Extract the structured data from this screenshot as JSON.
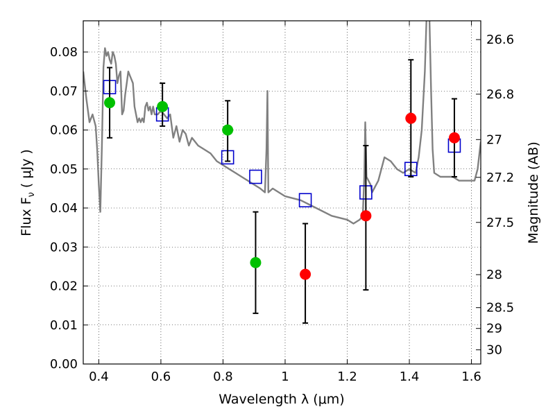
{
  "chart_data": {
    "type": "scatter",
    "xlabel": "Wavelength  λ (μm)",
    "ylabel": "Flux  F",
    "ylabel_subscript": "ν",
    "ylabel_unit": "( μJy )",
    "y2label": "Magnitude (AB)",
    "xlim": [
      0.35,
      1.63
    ],
    "ylim": [
      0.0,
      0.088
    ],
    "grid": true,
    "xticks": [
      {
        "value": 0.4,
        "label": "0.4"
      },
      {
        "value": 0.6,
        "label": "0.6"
      },
      {
        "value": 0.8,
        "label": "0.8"
      },
      {
        "value": 1.0,
        "label": "1"
      },
      {
        "value": 1.2,
        "label": "1.2"
      },
      {
        "value": 1.4,
        "label": "1.4"
      },
      {
        "value": 1.6,
        "label": "1.6"
      }
    ],
    "yticks": [
      {
        "value": 0.0,
        "label": "0.00"
      },
      {
        "value": 0.01,
        "label": "0.01"
      },
      {
        "value": 0.02,
        "label": "0.02"
      },
      {
        "value": 0.03,
        "label": "0.03"
      },
      {
        "value": 0.04,
        "label": "0.04"
      },
      {
        "value": 0.05,
        "label": "0.05"
      },
      {
        "value": 0.06,
        "label": "0.06"
      },
      {
        "value": 0.07,
        "label": "0.07"
      },
      {
        "value": 0.08,
        "label": "0.08"
      }
    ],
    "y2ticks": [
      {
        "value": 26.6,
        "label": "26.6"
      },
      {
        "value": 26.8,
        "label": "26.8"
      },
      {
        "value": 27.0,
        "label": "27"
      },
      {
        "value": 27.2,
        "label": "27.2"
      },
      {
        "value": 27.5,
        "label": "27.5"
      },
      {
        "value": 28.0,
        "label": "28"
      },
      {
        "value": 28.5,
        "label": "28.5"
      },
      {
        "value": 29.0,
        "label": "29"
      },
      {
        "value": 30.0,
        "label": "30"
      }
    ],
    "series": [
      {
        "kind": "line",
        "color": "#808080",
        "points": [
          [
            0.35,
            0.075
          ],
          [
            0.36,
            0.068
          ],
          [
            0.37,
            0.062
          ],
          [
            0.38,
            0.064
          ],
          [
            0.39,
            0.061
          ],
          [
            0.395,
            0.055
          ],
          [
            0.4,
            0.046
          ],
          [
            0.405,
            0.039
          ],
          [
            0.41,
            0.056
          ],
          [
            0.415,
            0.076
          ],
          [
            0.42,
            0.081
          ],
          [
            0.425,
            0.079
          ],
          [
            0.43,
            0.08
          ],
          [
            0.435,
            0.078
          ],
          [
            0.44,
            0.077
          ],
          [
            0.445,
            0.08
          ],
          [
            0.45,
            0.079
          ],
          [
            0.455,
            0.077
          ],
          [
            0.46,
            0.072
          ],
          [
            0.465,
            0.074
          ],
          [
            0.47,
            0.075
          ],
          [
            0.475,
            0.064
          ],
          [
            0.48,
            0.065
          ],
          [
            0.485,
            0.069
          ],
          [
            0.49,
            0.072
          ],
          [
            0.495,
            0.075
          ],
          [
            0.5,
            0.074
          ],
          [
            0.505,
            0.073
          ],
          [
            0.51,
            0.072
          ],
          [
            0.515,
            0.066
          ],
          [
            0.52,
            0.064
          ],
          [
            0.525,
            0.062
          ],
          [
            0.53,
            0.063
          ],
          [
            0.535,
            0.062
          ],
          [
            0.54,
            0.063
          ],
          [
            0.545,
            0.062
          ],
          [
            0.55,
            0.066
          ],
          [
            0.555,
            0.067
          ],
          [
            0.56,
            0.065
          ],
          [
            0.565,
            0.066
          ],
          [
            0.57,
            0.064
          ],
          [
            0.575,
            0.066
          ],
          [
            0.58,
            0.064
          ],
          [
            0.59,
            0.064
          ],
          [
            0.6,
            0.065
          ],
          [
            0.61,
            0.064
          ],
          [
            0.62,
            0.063
          ],
          [
            0.63,
            0.064
          ],
          [
            0.64,
            0.058
          ],
          [
            0.65,
            0.061
          ],
          [
            0.66,
            0.057
          ],
          [
            0.67,
            0.06
          ],
          [
            0.68,
            0.059
          ],
          [
            0.69,
            0.056
          ],
          [
            0.7,
            0.058
          ],
          [
            0.72,
            0.056
          ],
          [
            0.74,
            0.055
          ],
          [
            0.76,
            0.054
          ],
          [
            0.78,
            0.052
          ],
          [
            0.8,
            0.051
          ],
          [
            0.82,
            0.05
          ],
          [
            0.84,
            0.049
          ],
          [
            0.86,
            0.048
          ],
          [
            0.88,
            0.047
          ],
          [
            0.9,
            0.046
          ],
          [
            0.92,
            0.045
          ],
          [
            0.935,
            0.044
          ],
          [
            0.94,
            0.055
          ],
          [
            0.943,
            0.07
          ],
          [
            0.946,
            0.044
          ],
          [
            0.96,
            0.045
          ],
          [
            0.98,
            0.044
          ],
          [
            1.0,
            0.043
          ],
          [
            1.05,
            0.042
          ],
          [
            1.1,
            0.04
          ],
          [
            1.15,
            0.038
          ],
          [
            1.2,
            0.037
          ],
          [
            1.22,
            0.036
          ],
          [
            1.24,
            0.037
          ],
          [
            1.25,
            0.038
          ],
          [
            1.255,
            0.048
          ],
          [
            1.258,
            0.062
          ],
          [
            1.262,
            0.048
          ],
          [
            1.275,
            0.046
          ],
          [
            1.28,
            0.044
          ],
          [
            1.3,
            0.047
          ],
          [
            1.32,
            0.053
          ],
          [
            1.34,
            0.052
          ],
          [
            1.36,
            0.05
          ],
          [
            1.38,
            0.049
          ],
          [
            1.4,
            0.05
          ],
          [
            1.42,
            0.049
          ],
          [
            1.43,
            0.053
          ],
          [
            1.44,
            0.06
          ],
          [
            1.45,
            0.075
          ],
          [
            1.455,
            0.088
          ],
          [
            1.46,
            0.09
          ],
          [
            1.465,
            0.088
          ],
          [
            1.47,
            0.07
          ],
          [
            1.475,
            0.055
          ],
          [
            1.48,
            0.049
          ],
          [
            1.5,
            0.048
          ],
          [
            1.52,
            0.048
          ],
          [
            1.54,
            0.048
          ],
          [
            1.56,
            0.047
          ],
          [
            1.58,
            0.047
          ],
          [
            1.6,
            0.047
          ],
          [
            1.61,
            0.047
          ],
          [
            1.62,
            0.05
          ],
          [
            1.63,
            0.057
          ]
        ]
      },
      {
        "kind": "model-box",
        "color": "#0000cc",
        "points": [
          [
            0.435,
            0.071
          ],
          [
            0.605,
            0.064
          ],
          [
            0.815,
            0.053
          ],
          [
            0.905,
            0.048
          ],
          [
            1.065,
            0.042
          ],
          [
            1.26,
            0.044
          ],
          [
            1.405,
            0.05
          ],
          [
            1.545,
            0.056
          ]
        ]
      },
      {
        "kind": "green-detection",
        "color": "#00c000",
        "points": [
          {
            "x": 0.435,
            "y": 0.067,
            "lo": 0.058,
            "hi": 0.076
          },
          {
            "x": 0.605,
            "y": 0.066,
            "lo": 0.061,
            "hi": 0.072
          },
          {
            "x": 0.815,
            "y": 0.06,
            "lo": 0.052,
            "hi": 0.0675
          },
          {
            "x": 0.905,
            "y": 0.026,
            "lo": 0.013,
            "hi": 0.039
          }
        ]
      },
      {
        "kind": "red-detection",
        "color": "#ff0000",
        "points": [
          {
            "x": 1.065,
            "y": 0.023,
            "lo": 0.0105,
            "hi": 0.036
          },
          {
            "x": 1.26,
            "y": 0.038,
            "lo": 0.019,
            "hi": 0.056
          },
          {
            "x": 1.405,
            "y": 0.063,
            "lo": 0.048,
            "hi": 0.078
          },
          {
            "x": 1.545,
            "y": 0.058,
            "lo": 0.048,
            "hi": 0.068
          }
        ]
      }
    ]
  }
}
